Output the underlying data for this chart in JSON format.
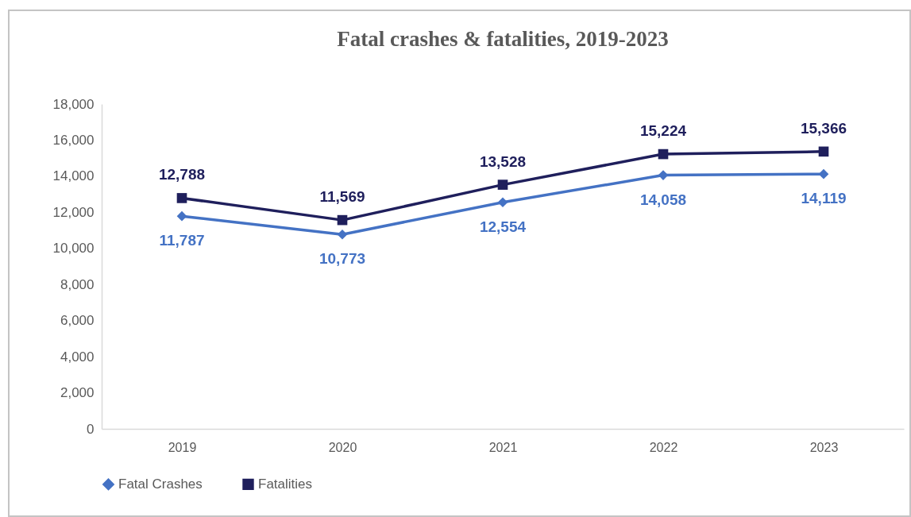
{
  "chart_data": {
    "type": "line",
    "title": "Fatal crashes & fatalities, 2019-2023",
    "categories": [
      "2019",
      "2020",
      "2021",
      "2022",
      "2023"
    ],
    "series": [
      {
        "name": "Fatal Crashes",
        "color": "#4472c4",
        "marker": "diamond",
        "values": [
          11787,
          10773,
          12554,
          14058,
          14119
        ],
        "value_labels": [
          "11,787",
          "10,773",
          "12,554",
          "14,058",
          "14,119"
        ]
      },
      {
        "name": "Fatalities",
        "color": "#1f1f5c",
        "marker": "square",
        "values": [
          12788,
          11569,
          13528,
          15224,
          15366
        ],
        "value_labels": [
          "12,788",
          "11,569",
          "13,528",
          "15,224",
          "15,366"
        ]
      }
    ],
    "ylim": [
      0,
      18000
    ],
    "yticks": [
      {
        "value": 0,
        "label": "0"
      },
      {
        "value": 2000,
        "label": "2,000"
      },
      {
        "value": 4000,
        "label": "4,000"
      },
      {
        "value": 6000,
        "label": "6,000"
      },
      {
        "value": 8000,
        "label": "8,000"
      },
      {
        "value": 10000,
        "label": "10,000"
      },
      {
        "value": 12000,
        "label": "12,000"
      },
      {
        "value": 14000,
        "label": "14,000"
      },
      {
        "value": 16000,
        "label": "16,000"
      },
      {
        "value": 18000,
        "label": "18,000"
      }
    ],
    "legend": "bottom"
  }
}
